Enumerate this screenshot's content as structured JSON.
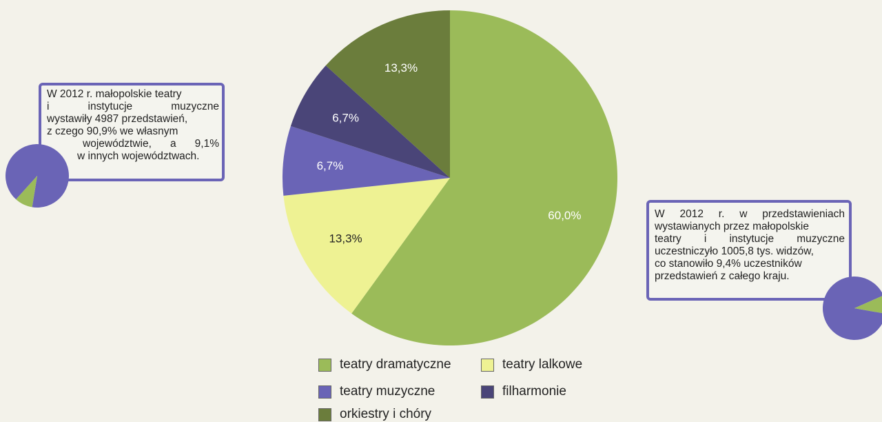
{
  "chart_data": {
    "type": "pie",
    "slices": [
      {
        "label": "teatry dramatyczne",
        "value": 60.0,
        "display": "60,0%",
        "color": "#9bbb59"
      },
      {
        "label": "teatry lalkowe",
        "value": 13.3,
        "display": "13,3%",
        "color": "#eef293"
      },
      {
        "label": "teatry muzyczne",
        "value": 6.7,
        "display": "6,7%",
        "color": "#6a64b6"
      },
      {
        "label": "filharmonie",
        "value": 6.7,
        "display": "6,7%",
        "color": "#4a4578"
      },
      {
        "label": "orkiestry i chóry",
        "value": 13.3,
        "display": "13,3%",
        "color": "#6b7d3c"
      }
    ],
    "legend": [
      "teatry dramatyczne",
      "teatry lalkowe",
      "teatry muzyczne",
      "filharmonie",
      "orkiestry i chóry"
    ],
    "legend_position": "bottom"
  },
  "mini_pies": {
    "left": {
      "type": "pie",
      "slices": [
        {
          "value": 90.9,
          "color": "#6a64b6"
        },
        {
          "value": 9.1,
          "color": "#9bbb59"
        }
      ]
    },
    "right": {
      "type": "pie",
      "slices": [
        {
          "value": 90.6,
          "color": "#6a64b6"
        },
        {
          "value": 9.4,
          "color": "#9bbb59"
        }
      ]
    }
  },
  "callouts": {
    "left": {
      "lines": [
        "W 2012 r. małopolskie teatry",
        "i instytucje muzyczne",
        "wystawiły 4987 przedstawień,",
        "z czego 90,9% we własnym",
        "województwie, a 9,1%",
        "w innych województwach."
      ]
    },
    "right": {
      "lines": [
        "W 2012 r. w przedstawieniach",
        "wystawianych przez małopolskie",
        "teatry i instytucje muzyczne",
        "uczestniczyło 1005,8 tys. widzów,",
        "co stanowiło 9,4% uczestników",
        "przedstawień z całego kraju."
      ]
    }
  }
}
